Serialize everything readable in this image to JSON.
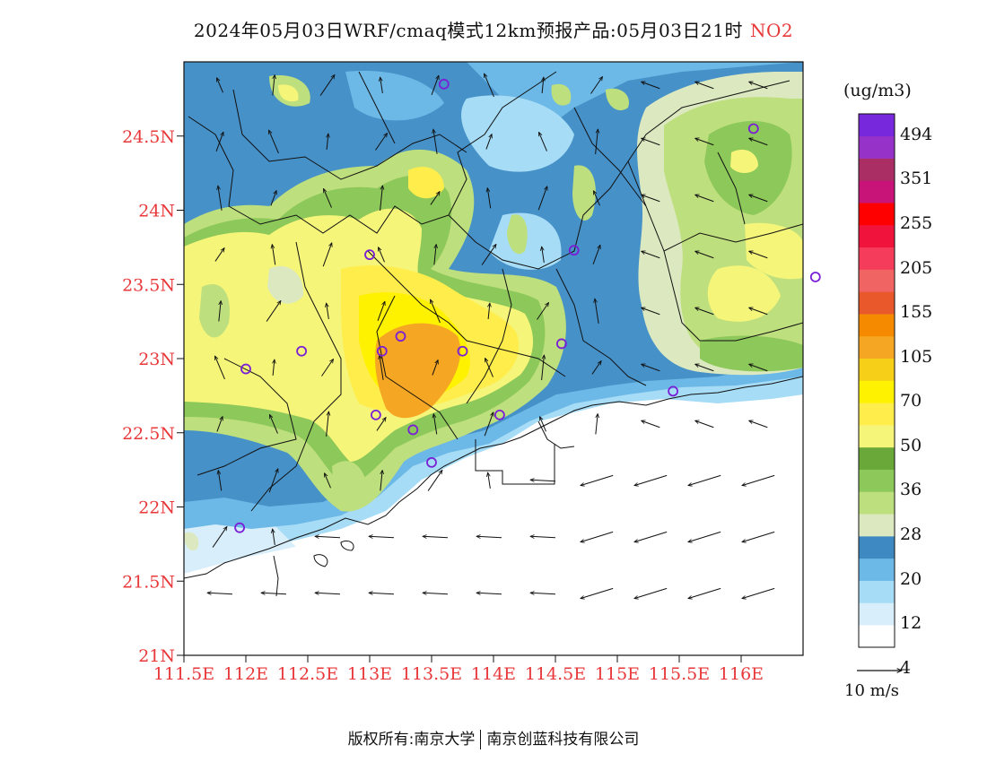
{
  "title": {
    "text": "2024年05月03日WRF/cmaq模式12km预报产品:05月03日21时",
    "species": "NO2"
  },
  "axes": {
    "lat_labels": [
      "24.5N",
      "24N",
      "23.5N",
      "23N",
      "22.5N",
      "22N",
      "21.5N",
      "21N"
    ],
    "lon_labels": [
      "111.5E",
      "112E",
      "112.5E",
      "113E",
      "113.5E",
      "114E",
      "114.5E",
      "115E",
      "115.5E",
      "116E"
    ],
    "lat_range": [
      21,
      25
    ],
    "lon_range": [
      111.5,
      116.5
    ]
  },
  "legend": {
    "unit": "(ug/m3)",
    "labels": [
      "494",
      "351",
      "255",
      "205",
      "155",
      "105",
      "70",
      "50",
      "36",
      "28",
      "20",
      "12",
      "4"
    ],
    "colors": [
      "#ffffff",
      "#d8eefa",
      "#a6dcf5",
      "#6cb8e6",
      "#3f89c2",
      "#dce9c0",
      "#bedf7d",
      "#8dc85a",
      "#6ba83a",
      "#f5f57a",
      "#ffed4c",
      "#fff200",
      "#f5cf18",
      "#f5a623",
      "#f58a00",
      "#e8582a",
      "#f06464",
      "#f53c5a",
      "#f0143c",
      "#ff0000",
      "#c81478",
      "#aa2d64",
      "#9632c8",
      "#7828dc"
    ]
  },
  "wind_scale": {
    "label": "10 m/s"
  },
  "stations": [
    [
      113.6,
      24.85
    ],
    [
      112.0,
      22.93
    ],
    [
      112.45,
      23.05
    ],
    [
      113.0,
      23.7
    ],
    [
      113.1,
      23.05
    ],
    [
      113.25,
      23.15
    ],
    [
      113.75,
      23.05
    ],
    [
      113.05,
      22.62
    ],
    [
      113.35,
      22.52
    ],
    [
      113.5,
      22.3
    ],
    [
      114.05,
      22.62
    ],
    [
      114.55,
      23.1
    ],
    [
      114.65,
      23.73
    ],
    [
      116.1,
      24.55
    ],
    [
      116.6,
      23.55
    ],
    [
      115.45,
      22.78
    ],
    [
      111.95,
      21.86
    ]
  ],
  "footer": {
    "left": "版权所有:南京大学",
    "right": "南京创蓝科技有限公司"
  }
}
